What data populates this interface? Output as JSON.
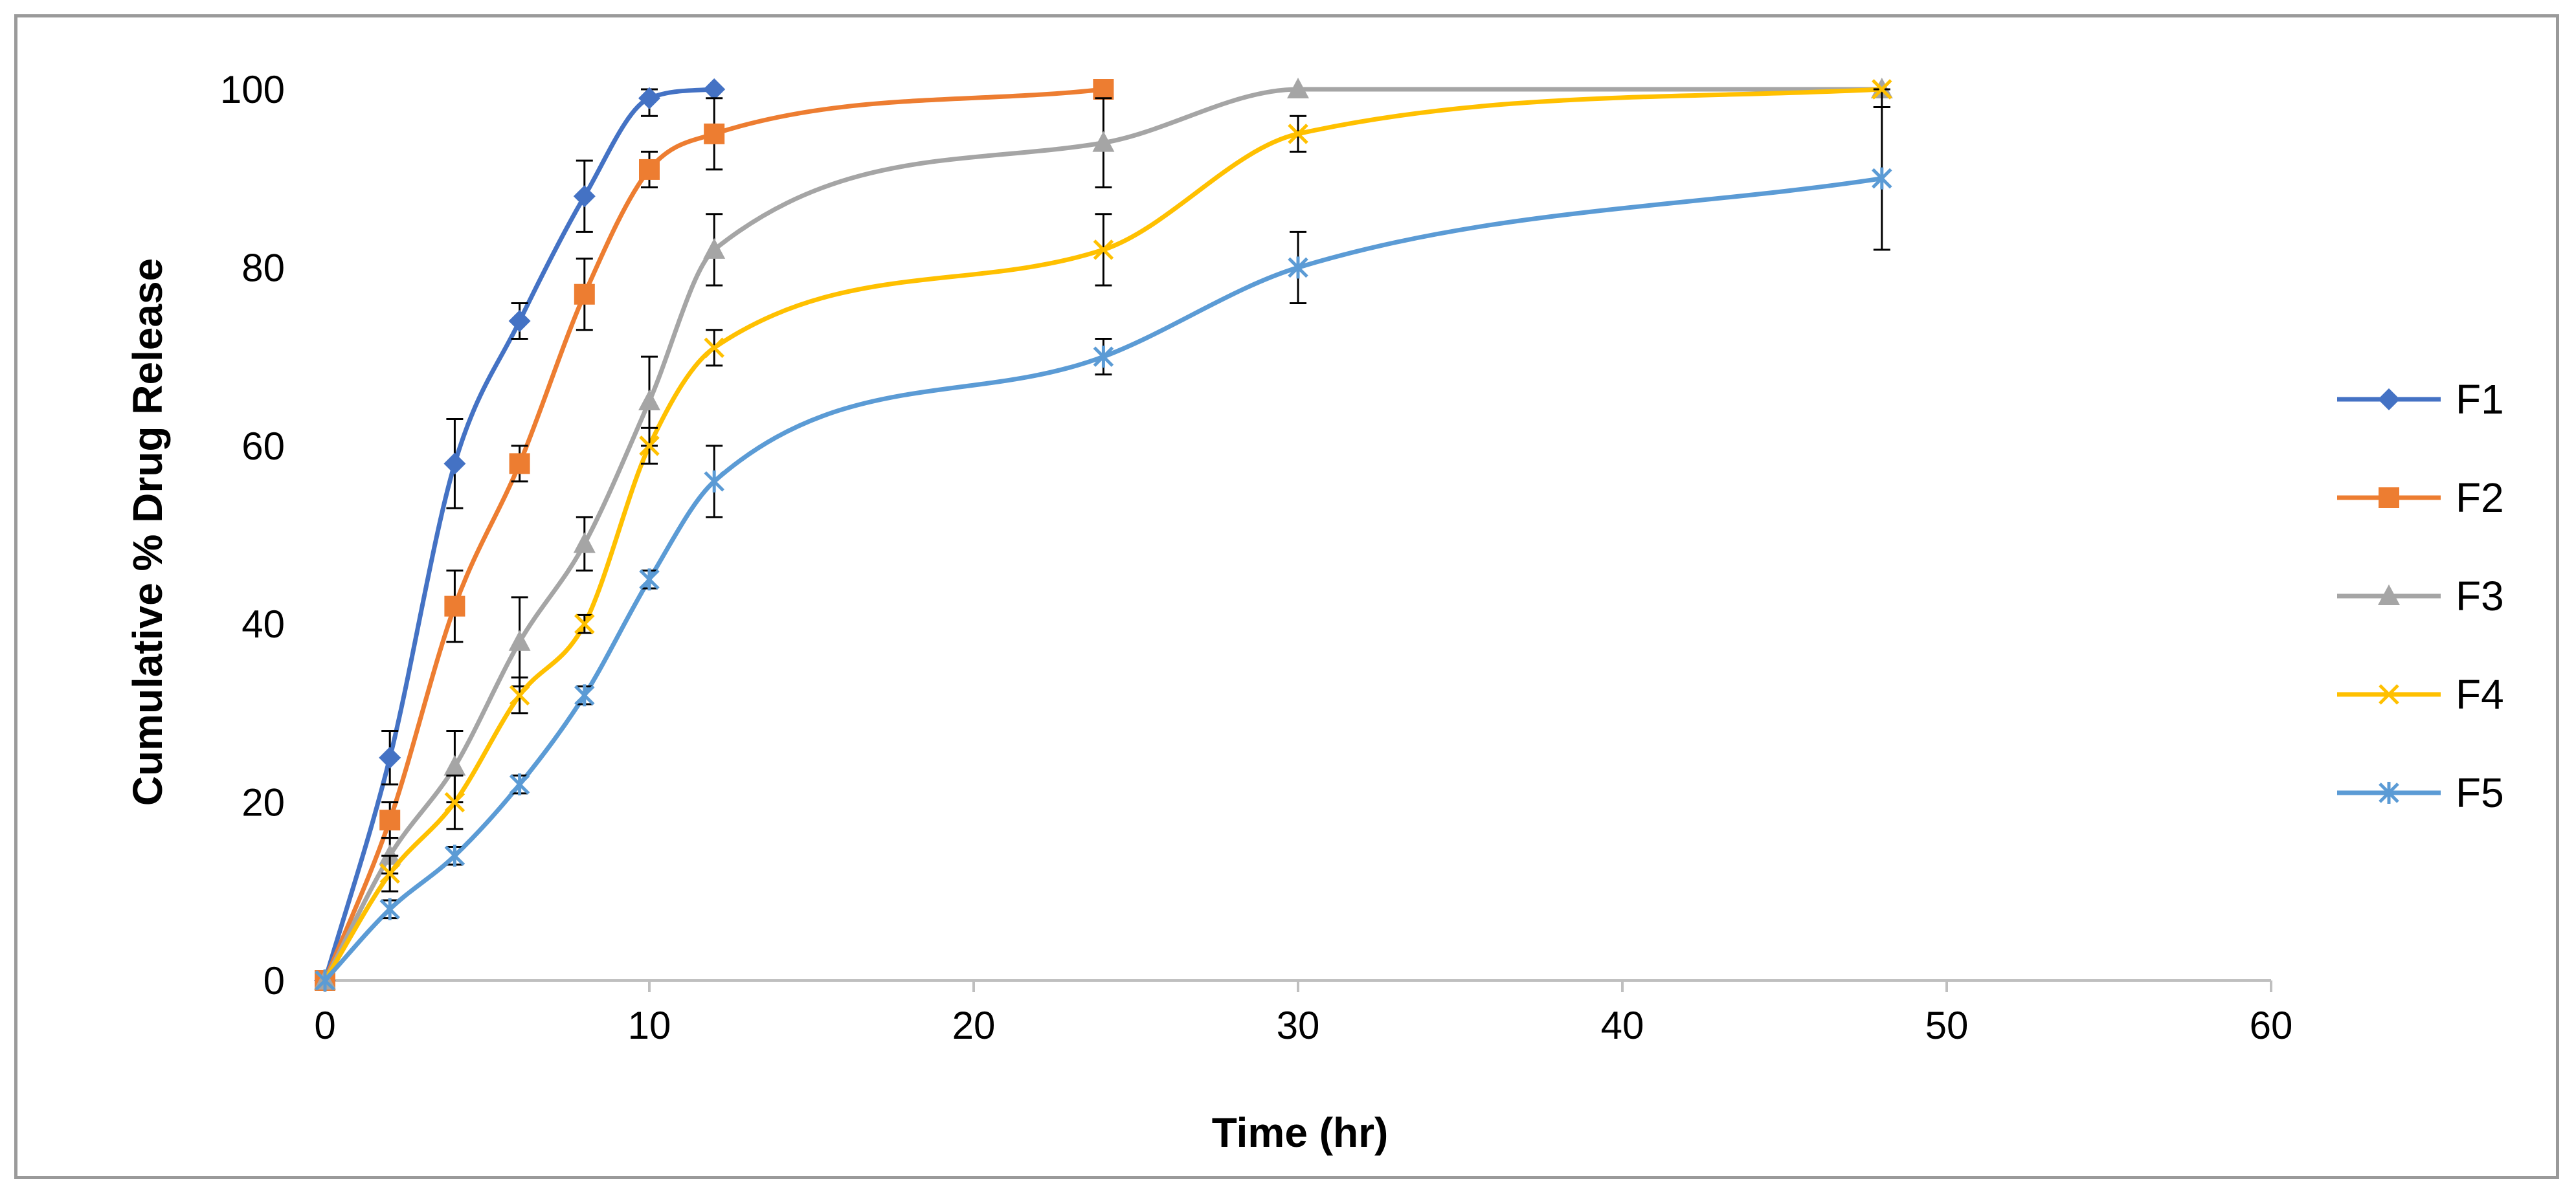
{
  "chart_data": {
    "type": "line",
    "title": "",
    "xlabel": "Time (hr)",
    "ylabel": "Cumulative % Drug Release",
    "xlim": [
      0,
      60
    ],
    "ylim": [
      0,
      100
    ],
    "xticks": [
      0,
      10,
      20,
      30,
      40,
      50,
      60
    ],
    "yticks": [
      0,
      20,
      40,
      60,
      80,
      100
    ],
    "grid": false,
    "legend_position": "right",
    "series": [
      {
        "name": "F1",
        "color": "#4472C4",
        "marker": "diamond",
        "x": [
          0,
          2,
          4,
          6,
          8,
          10,
          12
        ],
        "values": [
          0,
          25,
          58,
          74,
          88,
          99,
          100
        ],
        "errors": [
          0,
          3,
          5,
          2,
          4,
          2,
          0
        ]
      },
      {
        "name": "F2",
        "color": "#ED7D31",
        "marker": "square",
        "x": [
          0,
          2,
          4,
          6,
          8,
          10,
          12,
          24
        ],
        "values": [
          0,
          18,
          42,
          58,
          77,
          91,
          95,
          100
        ],
        "errors": [
          0,
          2,
          4,
          2,
          4,
          2,
          4,
          0
        ]
      },
      {
        "name": "F3",
        "color": "#A5A5A5",
        "marker": "triangle",
        "x": [
          0,
          2,
          4,
          6,
          8,
          10,
          12,
          24,
          30,
          48
        ],
        "values": [
          0,
          14,
          24,
          38,
          49,
          65,
          82,
          94,
          100,
          100
        ],
        "errors": [
          0,
          2,
          4,
          5,
          3,
          5,
          4,
          5,
          0,
          0
        ]
      },
      {
        "name": "F4",
        "color": "#FFC000",
        "marker": "x",
        "x": [
          0,
          2,
          4,
          6,
          8,
          10,
          12,
          24,
          30,
          48
        ],
        "values": [
          0,
          12,
          20,
          32,
          40,
          60,
          71,
          82,
          95,
          100
        ],
        "errors": [
          0,
          2,
          3,
          2,
          1,
          2,
          2,
          4,
          2,
          2
        ]
      },
      {
        "name": "F5",
        "color": "#5B9BD5",
        "marker": "star",
        "x": [
          0,
          2,
          4,
          6,
          8,
          10,
          12,
          24,
          30,
          48
        ],
        "values": [
          0,
          8,
          14,
          22,
          32,
          45,
          56,
          70,
          80,
          90
        ],
        "errors": [
          0,
          1,
          1,
          1,
          1,
          1,
          4,
          2,
          4,
          8
        ]
      }
    ]
  }
}
